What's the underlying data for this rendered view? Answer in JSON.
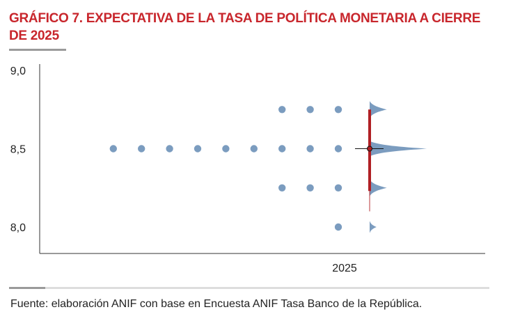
{
  "title": "GRÁFICO 7. EXPECTATIVA DE LA TASA DE POLÍTICA MONETARIA A CIERRE DE 2025",
  "source": "Fuente: elaboración ANIF con base en Encuesta ANIF Tasa Banco de la República.",
  "colors": {
    "title": "#c8262c",
    "dots": "#7b9cbf",
    "whisker": "#b01f24",
    "density": "#7b9cbf",
    "axis": "#333333"
  },
  "chart_data": {
    "type": "scatter",
    "title": "GRÁFICO 7. EXPECTATIVA DE LA TASA DE POLÍTICA MONETARIA A CIERRE DE 2025",
    "xlabel": "",
    "ylabel": "",
    "x_tick_labels": [
      "2025"
    ],
    "y_ticks": [
      8.0,
      8.5,
      9.0
    ],
    "y_tick_labels": [
      "8,0",
      "8,5",
      "9,0"
    ],
    "ylim": [
      7.99,
      9.0
    ],
    "grid": false,
    "legend": "none",
    "dot_rows": [
      {
        "value": 8.75,
        "count": 3
      },
      {
        "value": 8.5,
        "count": 9
      },
      {
        "value": 8.25,
        "count": 3
      },
      {
        "value": 8.0,
        "count": 1
      }
    ],
    "range": {
      "min": 8.1,
      "max": 8.75
    },
    "central_estimate": 8.5,
    "density": [
      {
        "value": 8.75,
        "magnitude": 0.3
      },
      {
        "value": 8.5,
        "magnitude": 1.0
      },
      {
        "value": 8.25,
        "magnitude": 0.3
      },
      {
        "value": 8.0,
        "magnitude": 0.12
      }
    ]
  }
}
